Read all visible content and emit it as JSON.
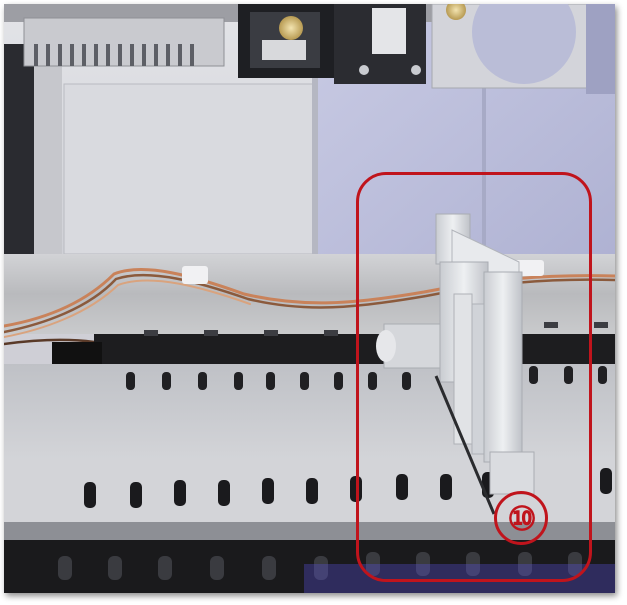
{
  "photo": {
    "subject": "instrument-interior",
    "colors": {
      "back_panel_left": "#d6d7dc",
      "back_panel_right": "#b9bcd9",
      "deck": "#c2c3c6",
      "rail_dark": "#1d1d1f",
      "bracket_metal": "#d9dbdf",
      "wire_orange": "#c9825a"
    }
  },
  "callout": {
    "number": "⑩",
    "color": "#c0141c"
  }
}
